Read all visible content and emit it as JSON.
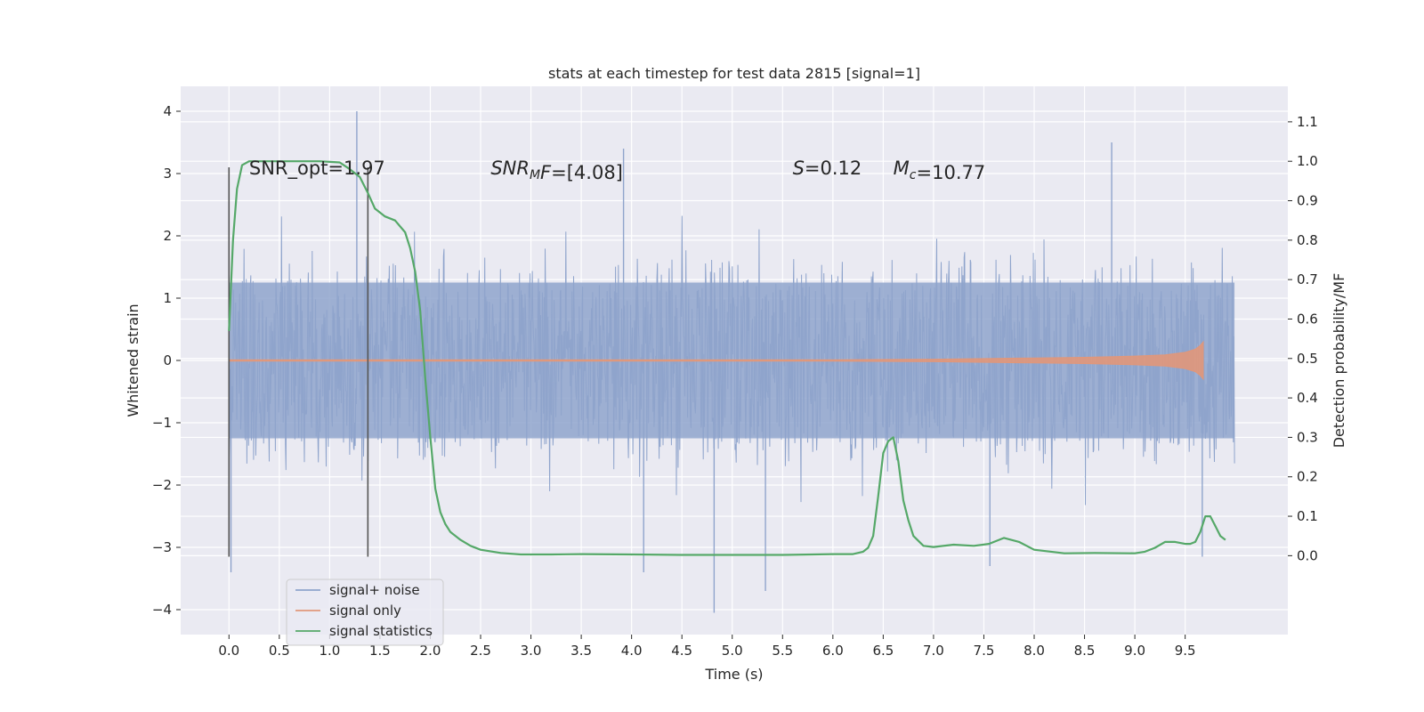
{
  "chart_data": {
    "type": "line",
    "title": "stats at each timestep for test data 2815 [signal=1]",
    "xlabel": "Time (s)",
    "ylabel_left": "Whitened strain",
    "ylabel_right": "Detection probability/MF",
    "xlim": [
      -0.48,
      10.52
    ],
    "ylim_left": [
      -4.4,
      4.4
    ],
    "ylim_right": [
      -0.2,
      1.19
    ],
    "x_ticks": [
      0.0,
      0.5,
      1.0,
      1.5,
      2.0,
      2.5,
      3.0,
      3.5,
      4.0,
      4.5,
      5.0,
      5.5,
      6.0,
      6.5,
      7.0,
      7.5,
      8.0,
      8.5,
      9.0,
      9.5
    ],
    "x_tick_labels": [
      "0.0",
      "0.5",
      "1.0",
      "1.5",
      "2.0",
      "2.5",
      "3.0",
      "3.5",
      "4.0",
      "4.5",
      "5.0",
      "5.5",
      "6.0",
      "6.5",
      "7.0",
      "7.5",
      "8.0",
      "8.5",
      "9.0",
      "9.5"
    ],
    "y_left_ticks": [
      -4,
      -3,
      -2,
      -1,
      0,
      1,
      2,
      3,
      4
    ],
    "y_left_tick_labels": [
      "−4",
      "−3",
      "−2",
      "−1",
      "0",
      "1",
      "2",
      "3",
      "4"
    ],
    "y_right_ticks": [
      0.0,
      0.1,
      0.2,
      0.3,
      0.4,
      0.5,
      0.6,
      0.7,
      0.8,
      0.9,
      1.0,
      1.1
    ],
    "y_right_tick_labels": [
      "0.0",
      "0.1",
      "0.2",
      "0.3",
      "0.4",
      "0.5",
      "0.6",
      "0.7",
      "0.8",
      "0.9",
      "1.0",
      "1.1"
    ],
    "grid": true,
    "legend_position": "bottom-left",
    "annotations": [
      {
        "key": "snr_opt",
        "parts": [
          {
            "t": "SNR_opt=1.97",
            "it": false
          }
        ],
        "x": 0.2,
        "y": 3.1
      },
      {
        "key": "snr_mf",
        "parts": [
          {
            "t": "SNR",
            "it": true
          },
          {
            "t": "M",
            "it": true,
            "sub": true
          },
          {
            "t": "F",
            "it": true
          },
          {
            "t": "=[4.08]",
            "it": false
          }
        ],
        "x": 2.6,
        "y": 3.1
      },
      {
        "key": "s",
        "parts": [
          {
            "t": "S",
            "it": true
          },
          {
            "t": "=0.12",
            "it": false
          }
        ],
        "x": 5.6,
        "y": 3.1
      },
      {
        "key": "mc",
        "parts": [
          {
            "t": "M",
            "it": true
          },
          {
            "t": "c",
            "it": true,
            "sub": true
          },
          {
            "t": "=10.77",
            "it": false
          }
        ],
        "x": 6.6,
        "y": 3.1
      }
    ],
    "vertical_markers": [
      {
        "x": 0.0,
        "y_top": 3.1,
        "y_bottom": -3.15
      },
      {
        "x": 1.38,
        "y_top": 3.1,
        "y_bottom": -3.15
      }
    ],
    "series": [
      {
        "name": "signal+ noise",
        "color": "#8fa4cc",
        "kind": "noise",
        "x_range": [
          0.0,
          9.99
        ],
        "typical_envelope": [
          -1.8,
          1.8
        ],
        "notable_peaks": [
          {
            "x": 1.27,
            "y": 4.0
          },
          {
            "x": 3.92,
            "y": 3.4
          },
          {
            "x": 8.77,
            "y": 3.5
          },
          {
            "x": 0.02,
            "y": -3.4
          },
          {
            "x": 4.82,
            "y": -4.05
          },
          {
            "x": 5.33,
            "y": -3.7
          },
          {
            "x": 4.12,
            "y": -3.4
          },
          {
            "x": 7.56,
            "y": -3.3
          },
          {
            "x": 9.67,
            "y": -3.15
          }
        ]
      },
      {
        "name": "signal only",
        "color": "#e1977a",
        "kind": "chirp",
        "x": [
          0.0,
          6.0,
          7.0,
          8.0,
          8.5,
          9.0,
          9.3,
          9.5,
          9.6,
          9.65,
          9.68
        ],
        "amplitude": [
          0.01,
          0.01,
          0.02,
          0.04,
          0.05,
          0.07,
          0.09,
          0.13,
          0.18,
          0.24,
          0.3
        ]
      },
      {
        "name": "signal statistics",
        "color": "#55a868",
        "kind": "line",
        "x": [
          0.0,
          0.04,
          0.08,
          0.13,
          0.2,
          0.35,
          0.6,
          0.9,
          1.1,
          1.2,
          1.3,
          1.38,
          1.45,
          1.55,
          1.65,
          1.75,
          1.8,
          1.85,
          1.9,
          1.95,
          2.0,
          2.05,
          2.1,
          2.15,
          2.2,
          2.3,
          2.4,
          2.5,
          2.7,
          2.9,
          3.2,
          3.5,
          4.0,
          4.5,
          5.0,
          5.5,
          5.8,
          6.0,
          6.2,
          6.3,
          6.35,
          6.4,
          6.45,
          6.5,
          6.55,
          6.6,
          6.65,
          6.7,
          6.75,
          6.8,
          6.9,
          7.0,
          7.2,
          7.4,
          7.55,
          7.7,
          7.85,
          8.0,
          8.3,
          8.6,
          9.0,
          9.1,
          9.2,
          9.3,
          9.4,
          9.5,
          9.55,
          9.6,
          9.65,
          9.7,
          9.75,
          9.8,
          9.85,
          9.9
        ],
        "y": [
          0.57,
          0.8,
          0.93,
          0.99,
          1.0,
          1.0,
          1.0,
          1.0,
          0.997,
          0.98,
          0.96,
          0.92,
          0.88,
          0.86,
          0.85,
          0.82,
          0.78,
          0.72,
          0.62,
          0.45,
          0.3,
          0.17,
          0.11,
          0.08,
          0.06,
          0.04,
          0.025,
          0.015,
          0.007,
          0.003,
          0.003,
          0.004,
          0.003,
          0.002,
          0.002,
          0.002,
          0.003,
          0.004,
          0.004,
          0.01,
          0.02,
          0.05,
          0.15,
          0.26,
          0.29,
          0.3,
          0.24,
          0.14,
          0.09,
          0.05,
          0.025,
          0.022,
          0.028,
          0.025,
          0.03,
          0.045,
          0.035,
          0.015,
          0.006,
          0.007,
          0.006,
          0.01,
          0.02,
          0.035,
          0.035,
          0.03,
          0.03,
          0.035,
          0.06,
          0.1,
          0.1,
          0.075,
          0.05,
          0.04
        ]
      }
    ]
  }
}
